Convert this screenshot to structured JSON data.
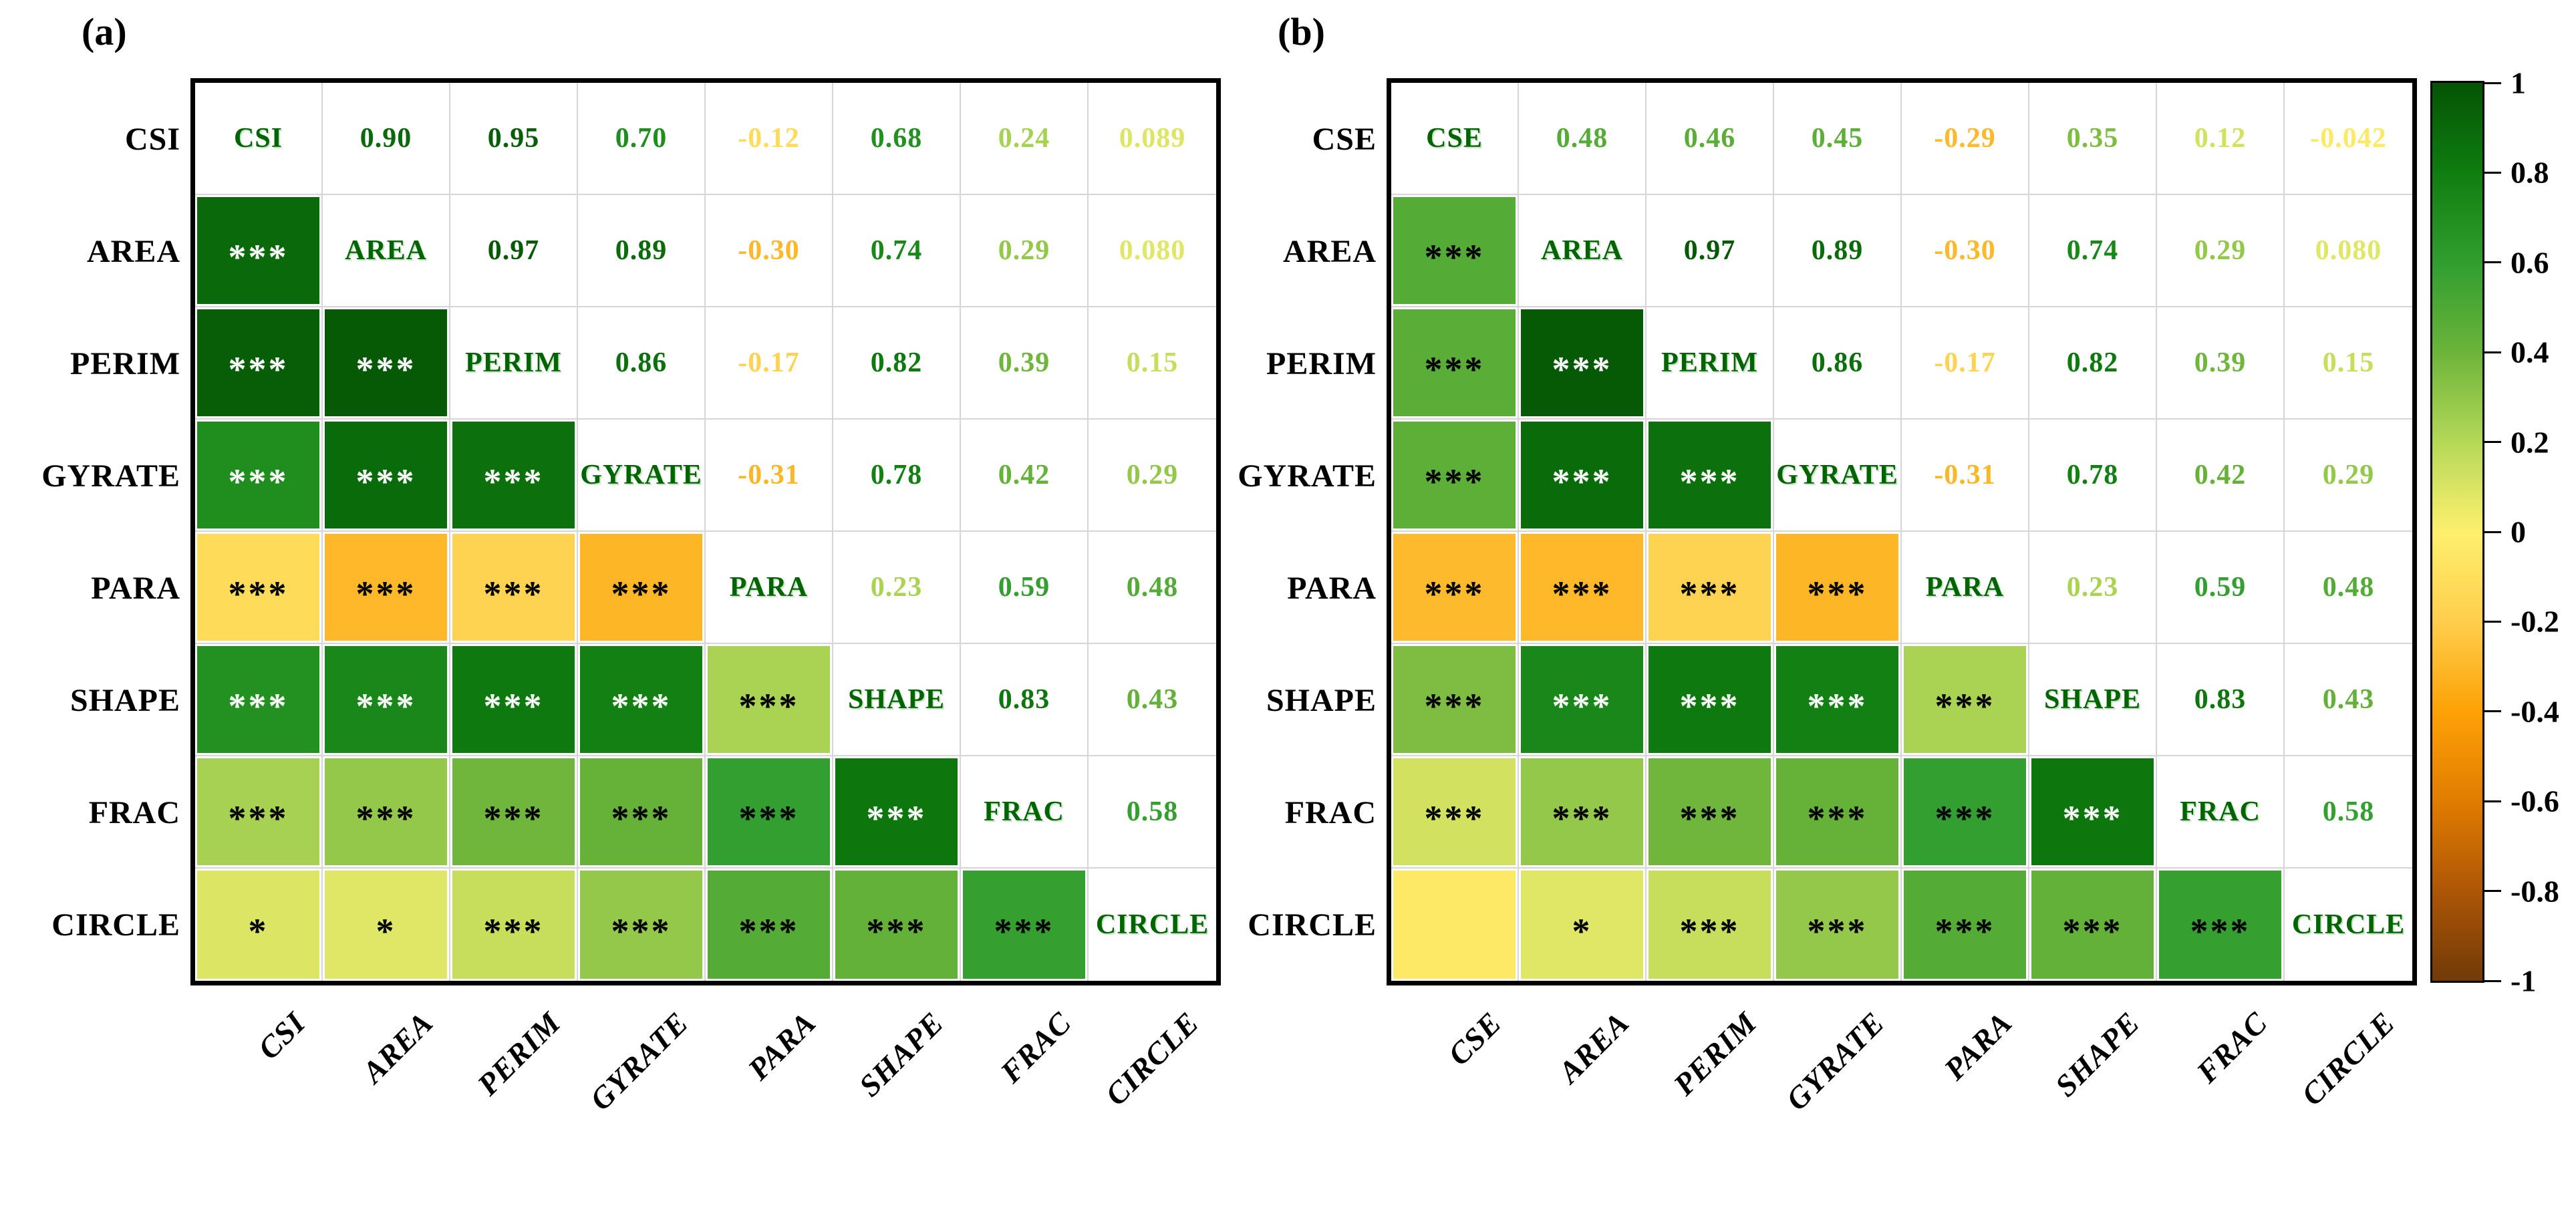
{
  "figure_type": "correlation-matrix-pair",
  "chart_data": [
    {
      "type": "heatmap",
      "title": "(a)",
      "variables": [
        "CSI",
        "AREA",
        "PERIM",
        "GYRATE",
        "PARA",
        "SHAPE",
        "FRAC",
        "CIRCLE"
      ],
      "upper_values": [
        [
          "0.90",
          "0.95",
          "0.70",
          "-0.12",
          "0.68",
          "0.24",
          "0.089"
        ],
        [
          "0.97",
          "0.89",
          "-0.30",
          "0.74",
          "0.29",
          "0.080"
        ],
        [
          "0.86",
          "-0.17",
          "0.82",
          "0.39",
          "0.15"
        ],
        [
          "-0.31",
          "0.78",
          "0.42",
          "0.29"
        ],
        [
          "0.23",
          "0.59",
          "0.48"
        ],
        [
          "0.83",
          "0.43"
        ],
        [
          "0.58"
        ]
      ],
      "significance": [
        [
          "***"
        ],
        [
          "***",
          "***"
        ],
        [
          "***",
          "***",
          "***"
        ],
        [
          "***",
          "***",
          "***",
          "***"
        ],
        [
          "***",
          "***",
          "***",
          "***",
          "***"
        ],
        [
          "***",
          "***",
          "***",
          "***",
          "***",
          "***"
        ],
        [
          "*",
          "*",
          "***",
          "***",
          "***",
          "***",
          "***"
        ]
      ]
    },
    {
      "type": "heatmap",
      "title": "(b)",
      "variables": [
        "CSE",
        "AREA",
        "PERIM",
        "GYRATE",
        "PARA",
        "SHAPE",
        "FRAC",
        "CIRCLE"
      ],
      "upper_values": [
        [
          "0.48",
          "0.46",
          "0.45",
          "-0.29",
          "0.35",
          "0.12",
          "-0.042"
        ],
        [
          "0.97",
          "0.89",
          "-0.30",
          "0.74",
          "0.29",
          "0.080"
        ],
        [
          "0.86",
          "-0.17",
          "0.82",
          "0.39",
          "0.15"
        ],
        [
          "-0.31",
          "0.78",
          "0.42",
          "0.29"
        ],
        [
          "0.23",
          "0.59",
          "0.48"
        ],
        [
          "0.83",
          "0.43"
        ],
        [
          "0.58"
        ]
      ],
      "significance": [
        [
          "***"
        ],
        [
          "***",
          "***"
        ],
        [
          "***",
          "***",
          "***"
        ],
        [
          "***",
          "***",
          "***",
          "***"
        ],
        [
          "***",
          "***",
          "***",
          "***",
          "***"
        ],
        [
          "***",
          "***",
          "***",
          "***",
          "***",
          "***"
        ],
        [
          "",
          "*",
          "***",
          "***",
          "***",
          "***",
          "***"
        ]
      ]
    }
  ],
  "colorbar": {
    "min": -1,
    "max": 1,
    "ticks": [
      "1",
      "0.8",
      "0.6",
      "0.4",
      "0.2",
      "0",
      "-0.2",
      "-0.4",
      "-0.6",
      "-0.8",
      "-1"
    ],
    "gradient_stops": [
      {
        "value": 1.0,
        "color": "#045404"
      },
      {
        "value": 0.8,
        "color": "#0f7d0f"
      },
      {
        "value": 0.6,
        "color": "#2f9e2f"
      },
      {
        "value": 0.4,
        "color": "#6cb43a"
      },
      {
        "value": 0.2,
        "color": "#b5d858"
      },
      {
        "value": 0.0,
        "color": "#fdf06d"
      },
      {
        "value": -0.2,
        "color": "#fece4c"
      },
      {
        "value": -0.4,
        "color": "#fda206"
      },
      {
        "value": -0.6,
        "color": "#e17c00"
      },
      {
        "value": -0.8,
        "color": "#ad5606"
      },
      {
        "value": -1.0,
        "color": "#713a07"
      }
    ]
  },
  "colors": {
    "diagonal_label": "#006400",
    "row_label": "#000000",
    "grid_line": "#d6d6d6",
    "border": "#000000",
    "star_dark": "#000000",
    "star_light": "#ffffff"
  },
  "star_white_threshold": 0.62
}
